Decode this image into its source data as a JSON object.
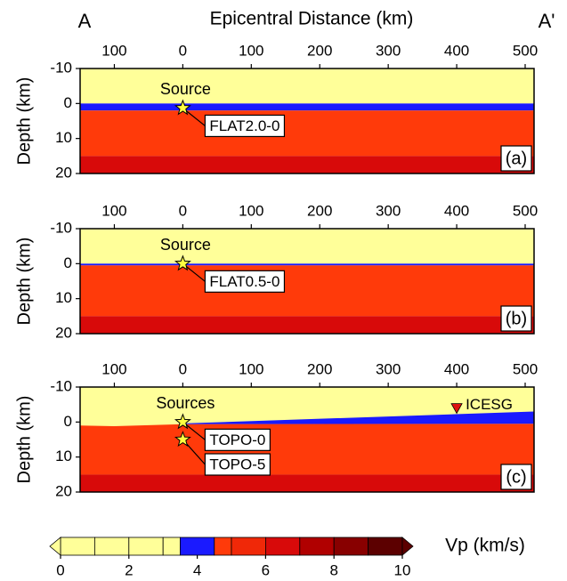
{
  "figure": {
    "xlabel": "Epicentral Distance (km)",
    "left_end": "A",
    "right_end": "A'"
  },
  "chart_data": [
    {
      "type": "section",
      "panel_label": "(a)",
      "ylabel": "Depth (km)",
      "xlim": [
        -150,
        513
      ],
      "ylim": [
        -10,
        20
      ],
      "xticks": [
        {
          "value": -100,
          "label": "100"
        },
        0,
        100,
        200,
        300,
        400,
        500
      ],
      "yticks": [
        -10,
        0,
        10,
        20
      ],
      "layers": [
        {
          "color": "#ffff99",
          "top": -10,
          "bottom": 0
        },
        {
          "color": "#1a1aff",
          "top": 0,
          "bottom": 2
        },
        {
          "color": "#ff3a0a",
          "top": 2,
          "bottom": 15
        },
        {
          "color": "#d80a0a",
          "top": 15,
          "bottom": 20
        }
      ],
      "source_label": "Source",
      "sources": [
        {
          "x": 0,
          "depth": 1.3,
          "label": "FLAT2.0-0"
        }
      ]
    },
    {
      "type": "section",
      "panel_label": "(b)",
      "ylabel": "Depth (km)",
      "xlim": [
        -150,
        513
      ],
      "ylim": [
        -10,
        20
      ],
      "xticks": [
        {
          "value": -100,
          "label": "100"
        },
        0,
        100,
        200,
        300,
        400,
        500
      ],
      "yticks": [
        -10,
        0,
        10,
        20
      ],
      "layers": [
        {
          "color": "#ffff99",
          "top": -10,
          "bottom": 0
        },
        {
          "color": "#1a1aff",
          "top": 0,
          "bottom": 0.5
        },
        {
          "color": "#ff3a0a",
          "top": 0.5,
          "bottom": 15
        },
        {
          "color": "#d80a0a",
          "top": 15,
          "bottom": 20
        }
      ],
      "source_label": "Source",
      "sources": [
        {
          "x": 0,
          "depth": 0,
          "label": "FLAT0.5-0"
        }
      ]
    },
    {
      "type": "section",
      "panel_label": "(c)",
      "ylabel": "Depth (km)",
      "xlim": [
        -150,
        513
      ],
      "ylim": [
        -10,
        20
      ],
      "xticks": [
        {
          "value": -100,
          "label": "100"
        },
        0,
        100,
        200,
        300,
        400,
        500
      ],
      "yticks": [
        -10,
        0,
        10,
        20
      ],
      "layers": [
        {
          "color": "#ffff99",
          "top": -10,
          "bottom": 20
        },
        {
          "color": "#ff3a0a",
          "x": [
            -150,
            -100,
            -50,
            0,
            513
          ],
          "top": [
            1,
            1.2,
            0.9,
            0.6,
            0.5
          ],
          "bottom": 15
        },
        {
          "color": "#1a1aff",
          "x": [
            0,
            513
          ],
          "top": [
            0.4,
            -3
          ],
          "bottom": [
            0.6,
            0.5
          ]
        },
        {
          "color": "#d80a0a",
          "top": 15,
          "bottom": 20
        }
      ],
      "source_label": "Sources",
      "sources": [
        {
          "x": 0,
          "depth": 0,
          "label": "TOPO-0"
        },
        {
          "x": 0,
          "depth": 5,
          "label": "TOPO-5"
        }
      ],
      "station": {
        "x": 400,
        "depth": -4,
        "label": "ICESG",
        "color": "#dd1111"
      }
    }
  ],
  "colorbar": {
    "label": "Vp (km/s)",
    "lim": [
      0,
      10
    ],
    "ticks": [
      0,
      2,
      4,
      6,
      8,
      10
    ],
    "extend": "both",
    "bounds": [
      0,
      1,
      2,
      3,
      3.5,
      4.5,
      5,
      6,
      7,
      8,
      9,
      10
    ],
    "colors": [
      "#ffff99",
      "#ffff99",
      "#ffff99",
      "#ffff99",
      "#1a1aff",
      "#ff3a0a",
      "#f02808",
      "#d80a0a",
      "#b00000",
      "#880000",
      "#5c0000"
    ]
  }
}
